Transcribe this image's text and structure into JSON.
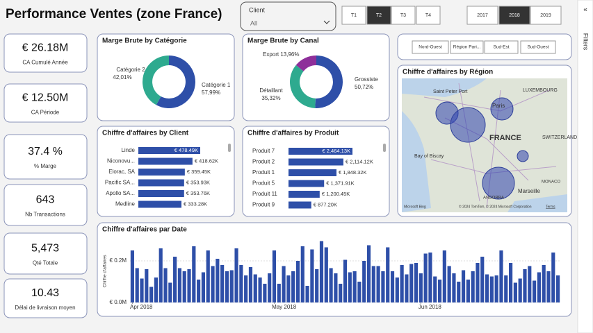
{
  "header": {
    "title": "Performance Ventes (zone France)"
  },
  "client_slicer": {
    "label": "Client",
    "value": "All"
  },
  "quarters": [
    {
      "label": "T1",
      "selected": false
    },
    {
      "label": "T2",
      "selected": true
    },
    {
      "label": "T3",
      "selected": false
    },
    {
      "label": "T4",
      "selected": false
    }
  ],
  "years": [
    {
      "label": "2017",
      "selected": false
    },
    {
      "label": "2018",
      "selected": true
    },
    {
      "label": "2019",
      "selected": false
    }
  ],
  "regions": [
    "Nord-Ouest",
    "Région Pari...",
    "Sud-Est",
    "Sud-Ouest"
  ],
  "filters_pane": {
    "icon": "«",
    "label": "Filters"
  },
  "kpis": [
    {
      "value": "€ 26.18M",
      "label": "CA Cumulé Année"
    },
    {
      "value": "€ 12.50M",
      "label": "CA Période"
    },
    {
      "value": "37.4 %",
      "label": "% Marge"
    },
    {
      "value": "643",
      "label": "Nb Transactions"
    },
    {
      "value": "5,473",
      "label": "Qté Totale"
    },
    {
      "value": "10.43",
      "label": "Délai de livraison moyen"
    }
  ],
  "map": {
    "title": "Chiffre d'affaires by Région",
    "labels": [
      "Saint Peter Port",
      "Paris",
      "LUXEMBOURG",
      "FRANCE",
      "SWITZERLAND",
      "Bay of Biscay",
      "Marseille",
      "MONACO",
      "ANDORRA"
    ],
    "brand": "Microsoft Bing",
    "copyright": "© 2024 TomTom, © 2024 Microsoft Corporation",
    "terms": "Terms"
  },
  "chart_data": [
    {
      "type": "pie",
      "title": "Marge Brute by Catégorie",
      "hole": 0.63,
      "categories": [
        "Catégorie 1",
        "Catégorie 2"
      ],
      "values": [
        57.99,
        42.01
      ],
      "value_labels": [
        "57,99%",
        "42,01%"
      ],
      "colors": [
        "#2e4fa8",
        "#2eaa8f"
      ]
    },
    {
      "type": "pie",
      "title": "Marge Brute by Canal",
      "hole": 0.63,
      "categories": [
        "Grossiste",
        "Détaillant",
        "Export"
      ],
      "values": [
        50.72,
        35.32,
        13.96
      ],
      "value_labels": [
        "50,72%",
        "35,32%",
        "13,96%"
      ],
      "colors": [
        "#2e4fa8",
        "#2eaa8f",
        "#8e2f9a"
      ]
    },
    {
      "type": "hbar",
      "title": "Chiffre d'affaires by Client",
      "categories": [
        "Linde",
        "Niconovu...",
        "Elorac, SA",
        "Pacific SA...",
        "Apollo SA...",
        "Medline"
      ],
      "values": [
        478490,
        418620,
        359450,
        353930,
        353760,
        333280
      ],
      "value_labels": [
        "€ 478.49K",
        "€ 418.62K",
        "€ 359.45K",
        "€ 353.93K",
        "€ 353.76K",
        "€ 333.28K"
      ],
      "color": "#2e4fa8"
    },
    {
      "type": "hbar",
      "title": "Chiffre d'affaires by Produit",
      "categories": [
        "Produit 7",
        "Produit 2",
        "Produit 1",
        "Produit 5",
        "Produit 11",
        "Produit 9"
      ],
      "values": [
        2464130,
        2114120,
        1848320,
        1371910,
        1200450,
        877200
      ],
      "value_labels": [
        "€ 2,464.13K",
        "€ 2,114.12K",
        "€ 1,848.32K",
        "€ 1,371.91K",
        "€ 1,200.45K",
        "€ 877.20K"
      ],
      "color": "#2e4fa8"
    },
    {
      "type": "bar",
      "title": "Chiffre d'affaires par Date",
      "y_label": "Chiffre d'affaires",
      "color": "#2e4fa8",
      "ylim": [
        0,
        300000
      ],
      "yticks": [
        {
          "value": 0,
          "label": "€ 0.0M"
        },
        {
          "value": 200000,
          "label": "€ 0.2M"
        }
      ],
      "xlim": [
        -0.5,
        90.5
      ],
      "xticks": [
        {
          "value": 0,
          "label": "Apr 2018"
        },
        {
          "value": 30,
          "label": "May 2018"
        },
        {
          "value": 61,
          "label": "Jun 2018"
        }
      ],
      "values": [
        250000,
        165000,
        115000,
        160000,
        75000,
        120000,
        260000,
        165000,
        95000,
        220000,
        165000,
        150000,
        160000,
        270000,
        110000,
        145000,
        250000,
        175000,
        210000,
        180000,
        150000,
        155000,
        260000,
        180000,
        130000,
        170000,
        135000,
        120000,
        90000,
        140000,
        250000,
        90000,
        175000,
        130000,
        150000,
        200000,
        270000,
        80000,
        255000,
        160000,
        295000,
        265000,
        165000,
        140000,
        90000,
        205000,
        145000,
        150000,
        100000,
        200000,
        275000,
        175000,
        175000,
        150000,
        265000,
        150000,
        120000,
        180000,
        135000,
        185000,
        190000,
        140000,
        235000,
        240000,
        125000,
        110000,
        250000,
        175000,
        140000,
        100000,
        155000,
        110000,
        150000,
        190000,
        220000,
        135000,
        125000,
        130000,
        250000,
        130000,
        190000,
        95000,
        115000,
        160000,
        175000,
        105000,
        145000,
        180000,
        150000,
        240000,
        130000
      ]
    }
  ]
}
